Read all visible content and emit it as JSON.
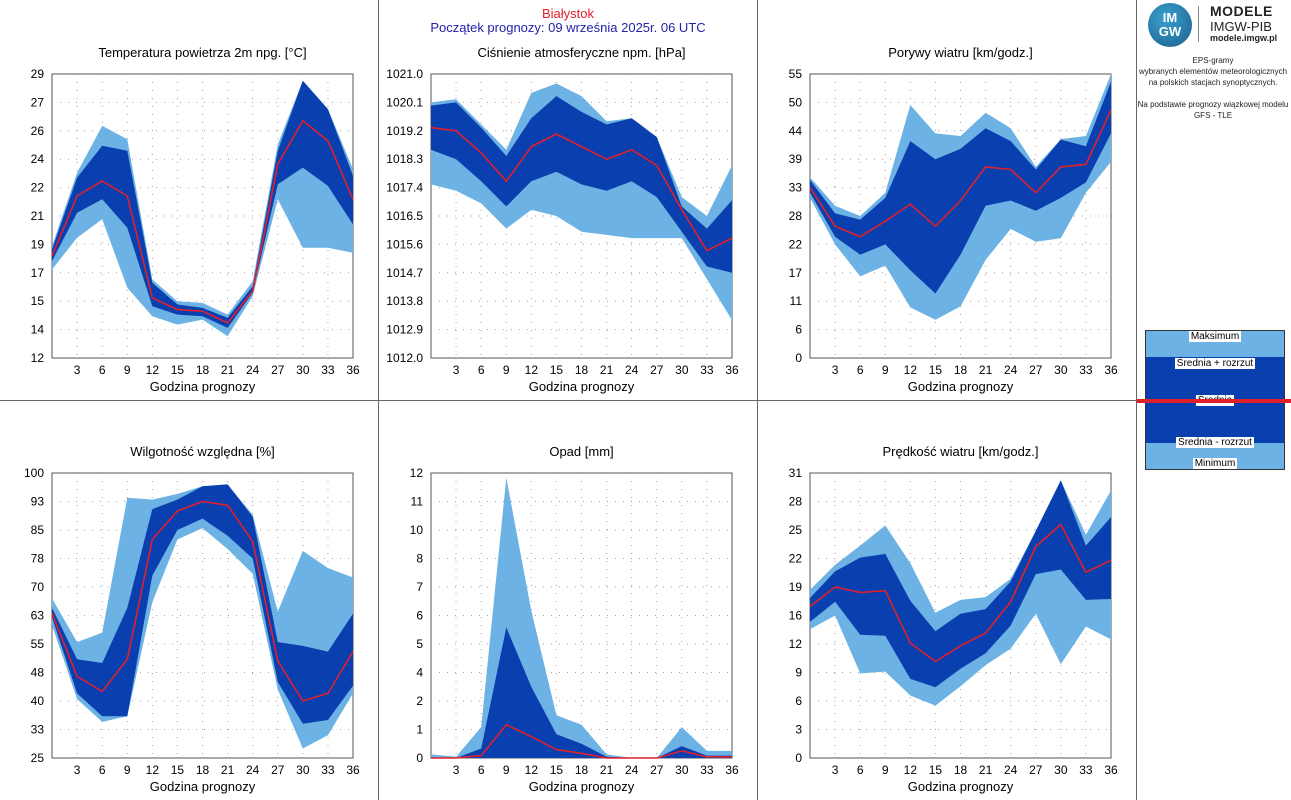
{
  "header": {
    "station": "Białystok",
    "forecast_start": "Początek prognozy: 09 września 2025r. 06 UTC"
  },
  "logo": {
    "mark_top": "IM",
    "mark_bottom": "GW",
    "title": "MODELE",
    "subtitle": "IMGW-PIB",
    "url": "modele.imgw.pl"
  },
  "side_text": {
    "line1": "EPS-gramy",
    "line2": "wybranych elementów meteorologicznych",
    "line3": "na polskich stacjach  synoptycznych.",
    "line4": "Na podstawie prognozy wiązkowej modelu",
    "line5": "GFS - TLE"
  },
  "legend": {
    "max": "Maksimum",
    "mean_plus": "Średnia + rozrzut",
    "mean": "Średnia",
    "mean_minus": "Średnia - rozrzut",
    "min": "Minimum"
  },
  "colors": {
    "light_band": "#6cb2e4",
    "dark_band": "#0a3fb0",
    "mean_line": "#e0202a",
    "grid": "#a0a0a0",
    "panel_border": "#666666"
  },
  "chart_data": [
    {
      "id": "temperature",
      "type": "area",
      "title": "Temperatura powietrza 2m npg. [°C]",
      "xlabel": "Godzina prognozy",
      "ylim": [
        12,
        29
      ],
      "yticks": [
        "12",
        "14",
        "15",
        "17",
        "19",
        "21",
        "22",
        "24",
        "26",
        "27",
        "29"
      ],
      "x": [
        0,
        3,
        6,
        9,
        12,
        15,
        18,
        21,
        24,
        27,
        30,
        33,
        36
      ],
      "xticks": [
        "3",
        "6",
        "9",
        "12",
        "15",
        "18",
        "21",
        "24",
        "27",
        "30",
        "33",
        "36"
      ],
      "min": [
        17.3,
        19.2,
        20.3,
        16.2,
        14.5,
        14.0,
        14.3,
        13.3,
        15.7,
        21.5,
        18.6,
        18.6,
        18.3
      ],
      "lo": [
        17.8,
        20.7,
        21.5,
        19.8,
        15.1,
        14.6,
        14.5,
        13.8,
        15.9,
        22.4,
        23.4,
        22.3,
        20.0
      ],
      "mean": [
        18.1,
        21.7,
        22.6,
        21.7,
        15.6,
        14.9,
        14.8,
        14.1,
        16.0,
        23.6,
        26.2,
        25.0,
        21.5
      ],
      "hi": [
        18.5,
        22.8,
        24.7,
        24.4,
        16.5,
        15.2,
        15.0,
        14.4,
        16.3,
        24.4,
        28.6,
        26.9,
        22.9
      ],
      "max": [
        18.7,
        23.1,
        25.9,
        25.1,
        16.7,
        15.4,
        15.3,
        14.6,
        16.6,
        24.8,
        28.6,
        26.9,
        23.3
      ]
    },
    {
      "id": "pressure",
      "type": "area",
      "title": "Ciśnienie atmosferyczne npm. [hPa]",
      "xlabel": "Godzina prognozy",
      "ylim": [
        1012.0,
        1021.0
      ],
      "yticks": [
        "1012.0",
        "1012.9",
        "1013.8",
        "1014.7",
        "1015.6",
        "1016.5",
        "1017.4",
        "1018.3",
        "1019.2",
        "1020.1",
        "1021.0"
      ],
      "x": [
        0,
        3,
        6,
        9,
        12,
        15,
        18,
        21,
        24,
        27,
        30,
        33,
        36
      ],
      "xticks": [
        "3",
        "6",
        "9",
        "12",
        "15",
        "18",
        "21",
        "24",
        "27",
        "30",
        "33",
        "36"
      ],
      "min": [
        1017.5,
        1017.3,
        1016.9,
        1016.1,
        1016.7,
        1016.5,
        1016.0,
        1015.9,
        1015.8,
        1015.8,
        1015.8,
        1014.5,
        1013.2
      ],
      "lo": [
        1018.6,
        1018.3,
        1017.6,
        1016.8,
        1017.6,
        1017.9,
        1017.5,
        1017.3,
        1017.6,
        1017.1,
        1016.0,
        1014.9,
        1014.7
      ],
      "mean": [
        1019.3,
        1019.2,
        1018.5,
        1017.6,
        1018.7,
        1019.1,
        1018.7,
        1018.3,
        1018.6,
        1018.1,
        1016.7,
        1015.4,
        1015.8
      ],
      "hi": [
        1020.0,
        1020.1,
        1019.3,
        1018.4,
        1019.6,
        1020.3,
        1019.8,
        1019.4,
        1019.6,
        1019.0,
        1016.8,
        1016.1,
        1017.0
      ],
      "max": [
        1020.1,
        1020.2,
        1019.4,
        1018.6,
        1020.4,
        1020.7,
        1020.3,
        1019.5,
        1019.6,
        1019.0,
        1017.1,
        1016.5,
        1018.1
      ]
    },
    {
      "id": "gusts",
      "type": "area",
      "title": "Porywy wiatru [km/godz.]",
      "xlabel": "Godzina prognozy",
      "ylim": [
        0,
        55
      ],
      "yticks": [
        "0",
        "6",
        "11",
        "17",
        "22",
        "28",
        "33",
        "39",
        "44",
        "50",
        "55"
      ],
      "x": [
        0,
        3,
        6,
        9,
        12,
        15,
        18,
        21,
        24,
        27,
        30,
        33,
        36
      ],
      "xticks": [
        "3",
        "6",
        "9",
        "12",
        "15",
        "18",
        "21",
        "24",
        "27",
        "30",
        "33",
        "36"
      ],
      "min": [
        31.0,
        22.0,
        15.8,
        17.9,
        9.8,
        7.4,
        10.0,
        19.0,
        25.0,
        22.5,
        23.2,
        32.0,
        38.0
      ],
      "lo": [
        32.0,
        23.5,
        20.0,
        22.0,
        17.0,
        12.5,
        20.0,
        29.5,
        30.5,
        28.5,
        31.0,
        34.0,
        43.5
      ],
      "mean": [
        33.0,
        25.5,
        23.5,
        26.5,
        29.8,
        25.5,
        30.5,
        37.0,
        36.5,
        32.0,
        37.0,
        37.5,
        48.0
      ],
      "hi": [
        34.5,
        28.0,
        26.8,
        31.0,
        42.0,
        38.5,
        40.5,
        44.5,
        42.0,
        36.5,
        42.3,
        41.0,
        53.5
      ],
      "max": [
        35.0,
        29.5,
        27.5,
        32.0,
        49.0,
        43.5,
        43.0,
        47.5,
        44.5,
        37.0,
        42.4,
        43.0,
        55.0
      ]
    },
    {
      "id": "humidity",
      "type": "area",
      "title": "Wilgotność względna [%]",
      "xlabel": "Godzina prognozy",
      "ylim": [
        25,
        100
      ],
      "yticks": [
        "25",
        "33",
        "40",
        "48",
        "55",
        "63",
        "70",
        "78",
        "85",
        "93",
        "100"
      ],
      "x": [
        0,
        3,
        6,
        9,
        12,
        15,
        18,
        21,
        24,
        27,
        30,
        33,
        36
      ],
      "xticks": [
        "3",
        "6",
        "9",
        "12",
        "15",
        "18",
        "21",
        "24",
        "27",
        "30",
        "33",
        "36"
      ],
      "min": [
        60.0,
        40.5,
        34.5,
        36.0,
        66.0,
        82.5,
        85.5,
        80.0,
        73.5,
        43.0,
        27.5,
        31.0,
        42.0
      ],
      "lo": [
        62.0,
        42.0,
        36.0,
        36.0,
        73.0,
        85.0,
        88.0,
        83.5,
        77.5,
        45.0,
        34.0,
        35.0,
        44.0
      ],
      "mean": [
        63.0,
        46.5,
        42.5,
        51.0,
        82.5,
        90.0,
        92.5,
        91.5,
        82.0,
        50.5,
        40.0,
        42.0,
        53.0
      ],
      "hi": [
        64.5,
        51.0,
        50.0,
        64.5,
        90.5,
        93.0,
        96.5,
        97.0,
        88.5,
        55.5,
        54.5,
        53.0,
        63.0
      ],
      "max": [
        67.0,
        55.5,
        58.0,
        93.5,
        93.0,
        94.5,
        96.5,
        97.0,
        89.0,
        63.5,
        79.5,
        75.0,
        72.5
      ]
    },
    {
      "id": "precipitation",
      "type": "area",
      "title": "Opad [mm]",
      "xlabel": "Godzina prognozy",
      "ylim": [
        0,
        12
      ],
      "yticks": [
        "0",
        "1",
        "2",
        "4",
        "5",
        "6",
        "7",
        "8",
        "10",
        "11",
        "12"
      ],
      "x": [
        0,
        3,
        6,
        9,
        12,
        15,
        18,
        21,
        24,
        27,
        30,
        33,
        36
      ],
      "xticks": [
        "3",
        "6",
        "9",
        "12",
        "15",
        "18",
        "21",
        "24",
        "27",
        "30",
        "33",
        "36"
      ],
      "min": [
        0,
        0,
        0,
        0,
        0,
        0,
        0,
        0,
        0,
        0,
        0,
        0,
        0
      ],
      "lo": [
        0,
        0,
        0,
        0,
        0,
        0,
        0,
        0,
        0,
        0,
        0,
        0,
        0
      ],
      "mean": [
        0,
        0,
        0.1,
        1.4,
        0.9,
        0.35,
        0.2,
        0,
        0,
        0,
        0.3,
        0.05,
        0.05
      ],
      "hi": [
        0,
        0,
        0.4,
        5.5,
        3.0,
        1.0,
        0.6,
        0.05,
        0,
        0,
        0.5,
        0.1,
        0.1
      ],
      "max": [
        0.15,
        0.05,
        1.3,
        11.8,
        6.2,
        1.8,
        1.4,
        0.15,
        0,
        0,
        1.3,
        0.3,
        0.3
      ]
    },
    {
      "id": "wind_speed",
      "type": "area",
      "title": "Prędkość wiatru [km/godz.]",
      "xlabel": "Godzina prognozy",
      "ylim": [
        0,
        31
      ],
      "yticks": [
        "0",
        "3",
        "6",
        "9",
        "12",
        "16",
        "19",
        "22",
        "25",
        "28",
        "31"
      ],
      "x": [
        0,
        3,
        6,
        9,
        12,
        15,
        18,
        21,
        24,
        27,
        30,
        33,
        36
      ],
      "xticks": [
        "3",
        "6",
        "9",
        "12",
        "15",
        "18",
        "21",
        "24",
        "27",
        "30",
        "33",
        "36"
      ],
      "min": [
        14.0,
        15.5,
        9.2,
        9.4,
        6.8,
        5.7,
        7.8,
        10.1,
        11.9,
        15.7,
        10.2,
        14.3,
        12.9
      ],
      "lo": [
        14.8,
        17.0,
        13.4,
        13.3,
        8.6,
        7.7,
        9.7,
        11.4,
        14.4,
        20.0,
        20.5,
        17.2,
        17.3
      ],
      "mean": [
        16.5,
        18.6,
        18.0,
        18.2,
        12.5,
        10.5,
        12.2,
        13.6,
        17.0,
        23.0,
        25.4,
        20.2,
        21.5
      ],
      "hi": [
        17.4,
        20.3,
        21.8,
        22.2,
        17.1,
        13.8,
        15.7,
        16.2,
        19.2,
        24.7,
        30.2,
        23.1,
        26.2
      ],
      "max": [
        18.3,
        21.0,
        23.1,
        25.3,
        21.2,
        15.8,
        17.2,
        17.5,
        19.5,
        24.7,
        30.2,
        24.3,
        29.1
      ]
    }
  ]
}
